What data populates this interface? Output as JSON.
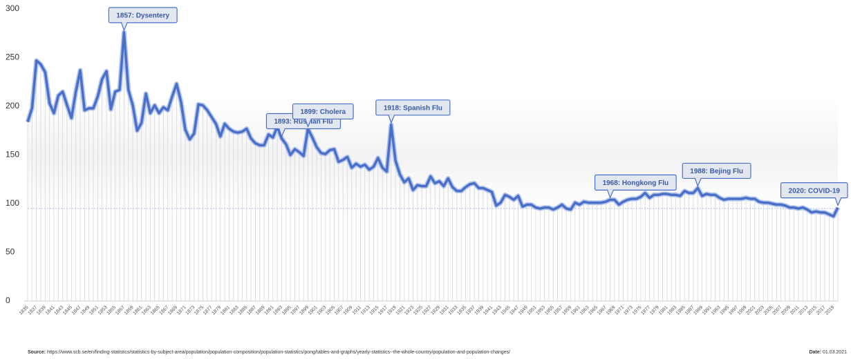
{
  "chart_data": {
    "type": "line",
    "categories": [
      "1835",
      null,
      "1837",
      null,
      "1839",
      null,
      "1841",
      null,
      "1843",
      null,
      "1845",
      null,
      "1847",
      null,
      "1849",
      null,
      "1851",
      null,
      "1853",
      null,
      "1855",
      null,
      "1857",
      null,
      "1859",
      null,
      "1861",
      null,
      "1863",
      null,
      "1865",
      null,
      "1867",
      null,
      "1869",
      null,
      "1871",
      null,
      "1873",
      null,
      "1875",
      null,
      "1877",
      null,
      "1879",
      null,
      "1881",
      null,
      "1883",
      null,
      "1885",
      null,
      "1887",
      null,
      "1889",
      null,
      "1891",
      null,
      "1893",
      null,
      "1895",
      null,
      "1897",
      null,
      "1899",
      null,
      "1901",
      null,
      "1903",
      null,
      "1905",
      null,
      "1907",
      null,
      "1909",
      null,
      "1911",
      null,
      "1913",
      null,
      "1915",
      null,
      "1917",
      null,
      "1919",
      null,
      "1921",
      null,
      "1923",
      null,
      "1925",
      null,
      "1927",
      null,
      "1929",
      null,
      "1931",
      null,
      "1933",
      null,
      "1935",
      null,
      "1937",
      null,
      "1939",
      null,
      "1941",
      null,
      "1943",
      null,
      "1945",
      null,
      "1947",
      null,
      "1949",
      null,
      "1951",
      null,
      "1953",
      null,
      "1955",
      null,
      "1957",
      null,
      "1959",
      null,
      "1961",
      null,
      "1963",
      null,
      "1965",
      null,
      "1967",
      null,
      "1969",
      null,
      "1971",
      null,
      "1973",
      null,
      "1975",
      null,
      "1977",
      null,
      "1979",
      null,
      "1981",
      null,
      "1983",
      null,
      "1985",
      null,
      "1987",
      null,
      "1989",
      null,
      "1991",
      null,
      "1993",
      null,
      "1995",
      null,
      "1997",
      null,
      "1999",
      null,
      "2001",
      null,
      "2003",
      null,
      "2005",
      null,
      "2007",
      null,
      "2009",
      null,
      "2011",
      null,
      "2013",
      null,
      "2015",
      null,
      "2017",
      null,
      "2019",
      null
    ],
    "values": [
      184,
      198,
      247,
      243,
      235,
      203,
      193,
      211,
      215,
      201,
      188,
      215,
      237,
      196,
      198,
      198,
      210,
      228,
      236,
      197,
      215,
      217,
      276,
      217,
      201,
      175,
      183,
      213,
      193,
      201,
      193,
      199,
      196,
      210,
      223,
      205,
      176,
      166,
      172,
      202,
      201,
      196,
      189,
      182,
      169,
      182,
      177,
      174,
      173,
      174,
      177,
      167,
      162,
      160,
      160,
      171,
      168,
      179,
      167,
      161,
      150,
      156,
      153,
      149,
      177,
      168,
      158,
      152,
      151,
      155,
      156,
      143,
      145,
      148,
      137,
      141,
      138,
      140,
      135,
      138,
      147,
      137,
      133,
      181,
      144,
      130,
      122,
      126,
      114,
      119,
      118,
      118,
      128,
      121,
      123,
      118,
      126,
      117,
      113,
      113,
      117,
      120,
      121,
      116,
      116,
      114,
      112,
      98,
      101,
      109,
      107,
      104,
      108,
      97,
      99,
      99,
      96,
      95,
      96,
      96,
      94,
      96,
      99,
      95,
      94,
      101,
      99,
      102,
      101,
      101,
      101,
      101,
      102,
      104,
      104,
      99,
      102,
      104,
      105,
      105,
      107,
      111,
      106,
      109,
      109,
      110,
      110,
      109,
      109,
      108,
      113,
      111,
      111,
      116,
      108,
      110,
      109,
      109,
      106,
      104,
      105,
      105,
      105,
      105,
      106,
      105,
      105,
      102,
      101,
      101,
      100,
      99,
      99,
      98,
      96,
      96,
      95,
      96,
      94,
      91,
      92,
      91,
      91,
      89,
      87,
      96
    ],
    "color": "#4a6fc8",
    "ylim": [
      0,
      300
    ],
    "yticks": [
      0,
      50,
      100,
      150,
      200,
      250,
      300
    ],
    "reference_value": 95,
    "annotations": [
      "1857: Dysentery",
      "1893: Russian Flu",
      "1899: Cholera",
      "1918: Spanish Flu",
      "1968: Hongkong Flu",
      "1988: Bejing Flu",
      "2020: COVID-19"
    ],
    "source_label": "Source:",
    "source": "https://www.scb.se/en/finding-statistics/statistics-by-subject-area/population/population-composition/population-statistics/pong/tables-and-graphs/yearly-statistics--the-whole-country/population-and-population-changes/",
    "date_label": "Date:",
    "date": "01.03.2021"
  }
}
